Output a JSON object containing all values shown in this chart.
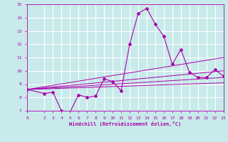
{
  "xlabel": "Windchill (Refroidissement éolien,°C)",
  "bg_color": "#c8eaea",
  "grid_color": "#ffffff",
  "line_color": "#aa00aa",
  "xlim": [
    0,
    23
  ],
  "ylim": [
    7,
    15
  ],
  "xticks": [
    0,
    2,
    3,
    4,
    5,
    6,
    7,
    8,
    9,
    10,
    11,
    12,
    13,
    14,
    15,
    16,
    17,
    18,
    19,
    20,
    21,
    22,
    23
  ],
  "yticks": [
    7,
    8,
    9,
    10,
    11,
    12,
    13,
    14,
    15
  ],
  "series1_x": [
    0,
    2,
    3,
    4,
    5,
    6,
    7,
    8,
    9,
    10,
    11,
    12,
    13,
    14,
    15,
    16,
    17,
    18,
    19,
    20,
    21,
    22,
    23
  ],
  "series1_y": [
    8.6,
    8.3,
    8.4,
    7.0,
    6.9,
    8.2,
    8.0,
    8.1,
    9.4,
    9.2,
    8.5,
    12.0,
    14.3,
    14.7,
    13.5,
    12.6,
    10.5,
    11.6,
    9.9,
    9.5,
    9.5,
    10.1,
    9.6
  ],
  "linear_lines": [
    {
      "x": [
        0,
        23
      ],
      "y": [
        8.6,
        11.0
      ]
    },
    {
      "x": [
        0,
        23
      ],
      "y": [
        8.6,
        10.0
      ]
    },
    {
      "x": [
        0,
        23
      ],
      "y": [
        8.6,
        9.5
      ]
    },
    {
      "x": [
        0,
        23
      ],
      "y": [
        8.6,
        9.1
      ]
    }
  ]
}
